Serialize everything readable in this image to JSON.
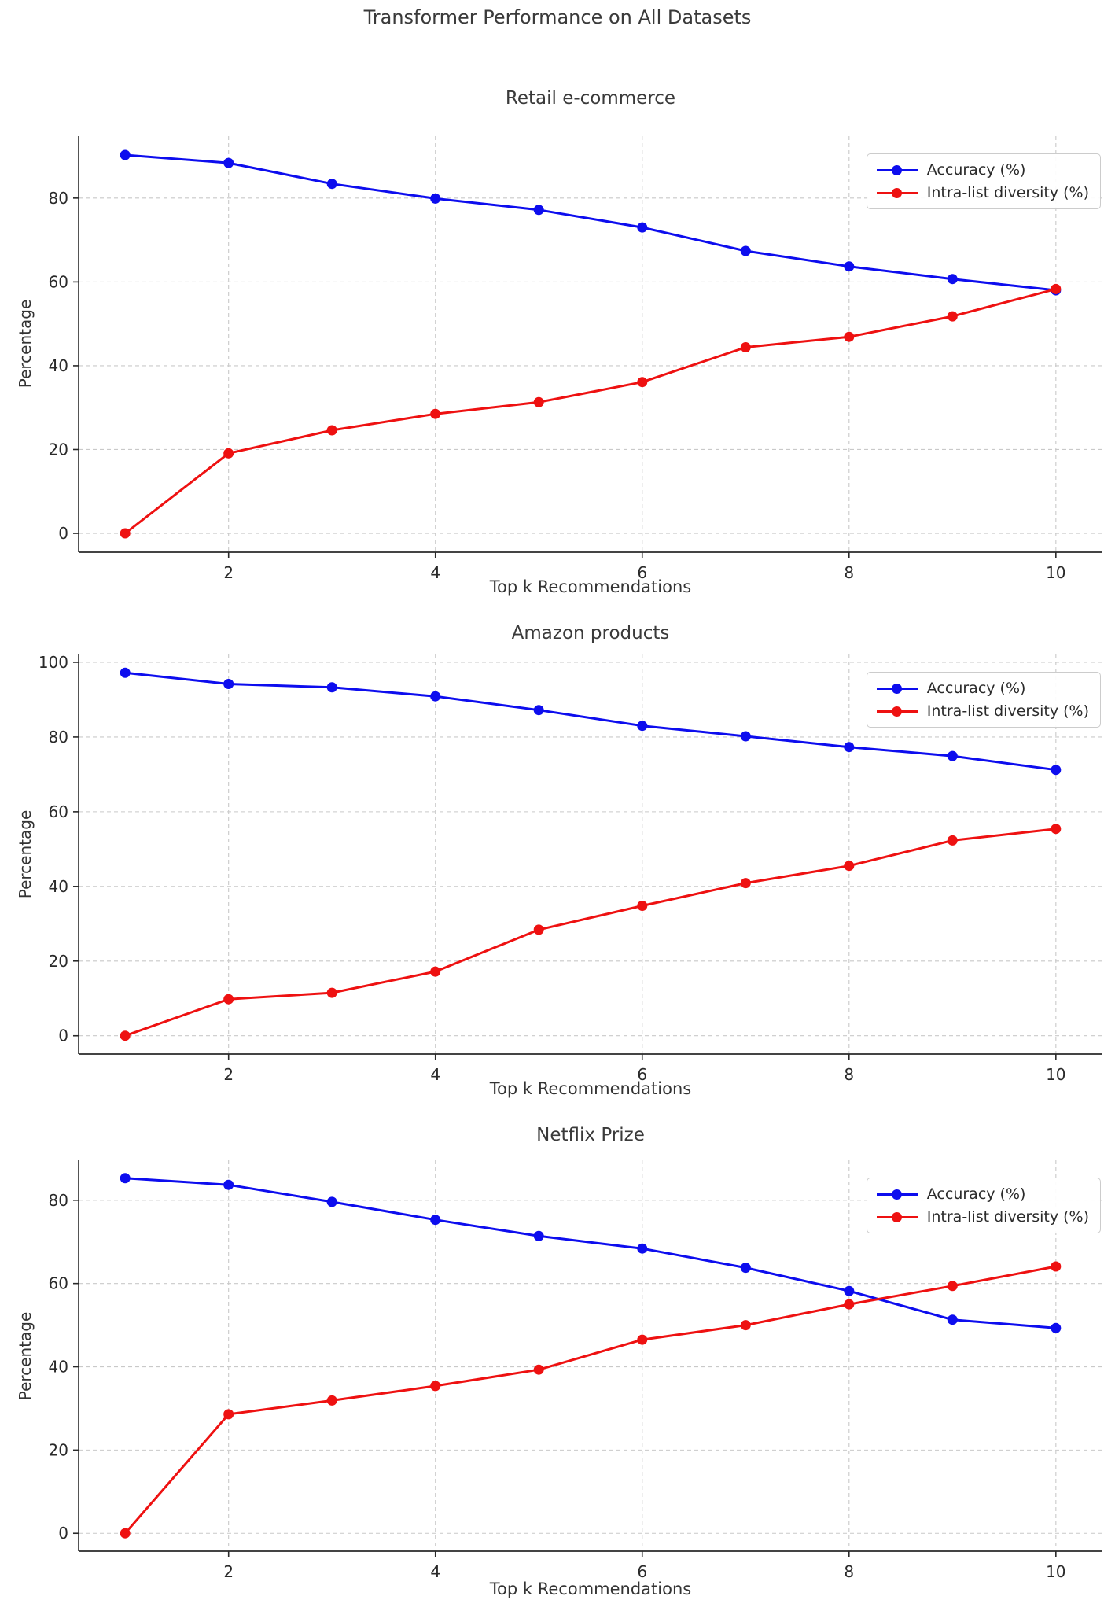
{
  "figure": {
    "suptitle": "Transformer Performance on All Datasets"
  },
  "axis_style": {
    "grid_color": "#c9c9c9",
    "spine_color": "#2a2a2a",
    "tick_label_color": "#2a2a2a",
    "legend_position": "upper right"
  },
  "chart_data": [
    {
      "type": "line",
      "title": "Retail e-commerce",
      "xlabel": "Top k Recommendations",
      "ylabel": "Percentage",
      "x": [
        1,
        2,
        3,
        4,
        5,
        6,
        7,
        8,
        9,
        10
      ],
      "xticks": [
        2,
        4,
        6,
        8,
        10
      ],
      "yticks": [
        0,
        20,
        40,
        60,
        80
      ],
      "xlim": [
        0.55,
        10.45
      ],
      "ylim": [
        -4.5,
        94.8
      ],
      "grid": true,
      "series": [
        {
          "name": "Accuracy (%)",
          "color": "#0d0dee",
          "values": [
            90.3,
            88.4,
            83.4,
            79.9,
            77.2,
            73.0,
            67.4,
            63.7,
            60.7,
            58.0
          ]
        },
        {
          "name": "Intra-list diversity (%)",
          "color": "#ee1111",
          "values": [
            0.0,
            19.1,
            24.6,
            28.5,
            31.3,
            36.1,
            44.4,
            46.9,
            51.8,
            58.3
          ]
        }
      ]
    },
    {
      "type": "line",
      "title": "Amazon products",
      "xlabel": "Top k Recommendations",
      "ylabel": "Percentage",
      "x": [
        1,
        2,
        3,
        4,
        5,
        6,
        7,
        8,
        9,
        10
      ],
      "xticks": [
        2,
        4,
        6,
        8,
        10
      ],
      "yticks": [
        0,
        20,
        40,
        60,
        80,
        100
      ],
      "xlim": [
        0.55,
        10.45
      ],
      "ylim": [
        -4.9,
        102.1
      ],
      "grid": true,
      "series": [
        {
          "name": "Accuracy (%)",
          "color": "#0d0dee",
          "values": [
            97.2,
            94.2,
            93.3,
            90.9,
            87.2,
            83.0,
            80.2,
            77.3,
            74.9,
            71.2
          ]
        },
        {
          "name": "Intra-list diversity (%)",
          "color": "#ee1111",
          "values": [
            0.0,
            9.8,
            11.5,
            17.2,
            28.4,
            34.8,
            40.9,
            45.5,
            52.3,
            55.4
          ]
        }
      ]
    },
    {
      "type": "line",
      "title": "Netflix Prize",
      "xlabel": "Top k Recommendations",
      "ylabel": "Percentage",
      "x": [
        1,
        2,
        3,
        4,
        5,
        6,
        7,
        8,
        9,
        10
      ],
      "xticks": [
        2,
        4,
        6,
        8,
        10
      ],
      "yticks": [
        0,
        20,
        40,
        60,
        80
      ],
      "xlim": [
        0.55,
        10.45
      ],
      "ylim": [
        -4.3,
        89.6
      ],
      "grid": true,
      "series": [
        {
          "name": "Accuracy (%)",
          "color": "#0d0dee",
          "values": [
            85.3,
            83.7,
            79.6,
            75.3,
            71.4,
            68.4,
            63.8,
            58.2,
            51.3,
            49.3
          ]
        },
        {
          "name": "Intra-list diversity (%)",
          "color": "#ee1111",
          "values": [
            0.0,
            28.6,
            31.9,
            35.4,
            39.3,
            46.5,
            50.0,
            55.0,
            59.4,
            64.1
          ]
        }
      ]
    }
  ]
}
